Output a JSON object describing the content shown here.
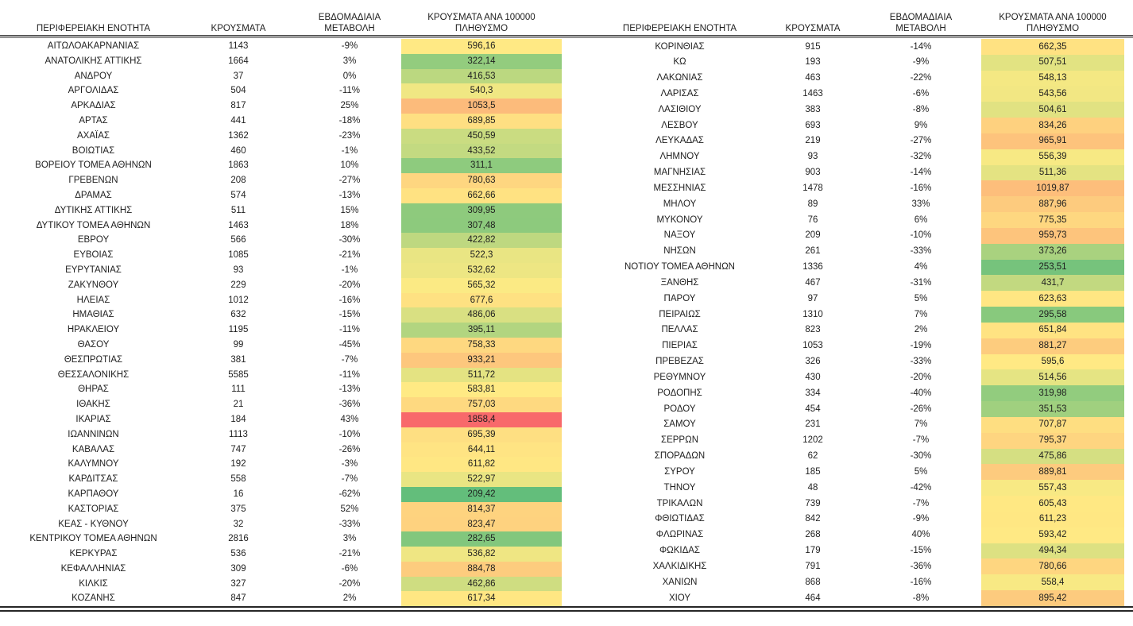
{
  "header": {
    "region": "ΠΕΡΙΦΕΡΕΙΑΚΗ ΕΝΟΤΗΤΑ",
    "cases": "ΚΡΟΥΣΜΑΤΑ",
    "change_line1": "ΕΒΔΟΜΑΔΙΑΙΑ",
    "change_line2": "ΜΕΤΑΒΟΛΗ",
    "per100k_line1": "ΚΡΟΥΣΜΑΤΑ ΑΝΑ 100000",
    "per100k_line2": "ΠΛΗΘΥΣΜΟ"
  },
  "color_scale": {
    "type": "3-color-scale",
    "min_value": 209.42,
    "mid_value": 574.57,
    "max_value": 1858.4,
    "min_color": "#63BE7B",
    "mid_color": "#FFEB84",
    "max_color": "#F8696B"
  },
  "left_table": {
    "rows": [
      [
        "ΑΙΤΩΛΟΑΚΑΡΝΑΝΙΑΣ",
        "1143",
        "-9%",
        "596,16"
      ],
      [
        "ΑΝΑΤΟΛΙΚΗΣ ΑΤΤΙΚΗΣ",
        "1664",
        "3%",
        "322,14"
      ],
      [
        "ΑΝΔΡΟΥ",
        "37",
        "0%",
        "416,53"
      ],
      [
        "ΑΡΓΟΛΙΔΑΣ",
        "504",
        "-11%",
        "540,3"
      ],
      [
        "ΑΡΚΑΔΙΑΣ",
        "817",
        "25%",
        "1053,5"
      ],
      [
        "ΑΡΤΑΣ",
        "441",
        "-18%",
        "689,85"
      ],
      [
        "ΑΧΑΪΑΣ",
        "1362",
        "-23%",
        "450,59"
      ],
      [
        "ΒΟΙΩΤΙΑΣ",
        "460",
        "-1%",
        "433,52"
      ],
      [
        "ΒΟΡΕΙΟΥ ΤΟΜΕΑ ΑΘΗΝΩΝ",
        "1863",
        "10%",
        "311,1"
      ],
      [
        "ΓΡΕΒΕΝΩΝ",
        "208",
        "-27%",
        "780,63"
      ],
      [
        "ΔΡΑΜΑΣ",
        "574",
        "-13%",
        "662,66"
      ],
      [
        "ΔΥΤΙΚΗΣ ΑΤΤΙΚΗΣ",
        "511",
        "15%",
        "309,95"
      ],
      [
        "ΔΥΤΙΚΟΥ ΤΟΜΕΑ ΑΘΗΝΩΝ",
        "1463",
        "18%",
        "307,48"
      ],
      [
        "ΕΒΡΟΥ",
        "566",
        "-30%",
        "422,82"
      ],
      [
        "ΕΥΒΟΙΑΣ",
        "1085",
        "-21%",
        "522,3"
      ],
      [
        "ΕΥΡΥΤΑΝΙΑΣ",
        "93",
        "-1%",
        "532,62"
      ],
      [
        "ΖΑΚΥΝΘΟΥ",
        "229",
        "-20%",
        "565,32"
      ],
      [
        "ΗΛΕΙΑΣ",
        "1012",
        "-16%",
        "677,6"
      ],
      [
        "ΗΜΑΘΙΑΣ",
        "632",
        "-15%",
        "486,06"
      ],
      [
        "ΗΡΑΚΛΕΙΟΥ",
        "1195",
        "-11%",
        "395,11"
      ],
      [
        "ΘΑΣΟΥ",
        "99",
        "-45%",
        "758,33"
      ],
      [
        "ΘΕΣΠΡΩΤΙΑΣ",
        "381",
        "-7%",
        "933,21"
      ],
      [
        "ΘΕΣΣΑΛΟΝΙΚΗΣ",
        "5585",
        "-11%",
        "511,72"
      ],
      [
        "ΘΗΡΑΣ",
        "111",
        "-13%",
        "583,81"
      ],
      [
        "ΙΘΑΚΗΣ",
        "21",
        "-36%",
        "757,03"
      ],
      [
        "ΙΚΑΡΙΑΣ",
        "184",
        "43%",
        "1858,4"
      ],
      [
        "ΙΩΑΝΝΙΝΩΝ",
        "1113",
        "-10%",
        "695,39"
      ],
      [
        "ΚΑΒΑΛΑΣ",
        "747",
        "-26%",
        "644,11"
      ],
      [
        "ΚΑΛΥΜΝΟΥ",
        "192",
        "-3%",
        "611,82"
      ],
      [
        "ΚΑΡΔΙΤΣΑΣ",
        "558",
        "-7%",
        "522,97"
      ],
      [
        "ΚΑΡΠΑΘΟΥ",
        "16",
        "-62%",
        "209,42"
      ],
      [
        "ΚΑΣΤΟΡΙΑΣ",
        "375",
        "52%",
        "814,37"
      ],
      [
        "ΚΕΑΣ - ΚΥΘΝΟΥ",
        "32",
        "-33%",
        "823,47"
      ],
      [
        "ΚΕΝΤΡΙΚΟΥ ΤΟΜΕΑ ΑΘΗΝΩΝ",
        "2816",
        "3%",
        "282,65"
      ],
      [
        "ΚΕΡΚΥΡΑΣ",
        "536",
        "-21%",
        "536,82"
      ],
      [
        "ΚΕΦΑΛΛΗΝΙΑΣ",
        "309",
        "-6%",
        "884,78"
      ],
      [
        "ΚΙΛΚΙΣ",
        "327",
        "-20%",
        "462,86"
      ],
      [
        "ΚΟΖΑΝΗΣ",
        "847",
        "2%",
        "617,34"
      ]
    ]
  },
  "right_table": {
    "rows": [
      [
        "ΚΟΡΙΝΘΙΑΣ",
        "915",
        "-14%",
        "662,35"
      ],
      [
        "ΚΩ",
        "193",
        "-9%",
        "507,51"
      ],
      [
        "ΛΑΚΩΝΙΑΣ",
        "463",
        "-22%",
        "548,13"
      ],
      [
        "ΛΑΡΙΣΑΣ",
        "1463",
        "-6%",
        "543,56"
      ],
      [
        "ΛΑΣΙΘΙΟΥ",
        "383",
        "-8%",
        "504,61"
      ],
      [
        "ΛΕΣΒΟΥ",
        "693",
        "9%",
        "834,26"
      ],
      [
        "ΛΕΥΚΑΔΑΣ",
        "219",
        "-27%",
        "965,91"
      ],
      [
        "ΛΗΜΝΟΥ",
        "93",
        "-32%",
        "556,39"
      ],
      [
        "ΜΑΓΝΗΣΙΑΣ",
        "903",
        "-14%",
        "511,36"
      ],
      [
        "ΜΕΣΣΗΝΙΑΣ",
        "1478",
        "-16%",
        "1019,87"
      ],
      [
        "ΜΗΛΟΥ",
        "89",
        "33%",
        "887,96"
      ],
      [
        "ΜΥΚΟΝΟΥ",
        "76",
        "6%",
        "775,35"
      ],
      [
        "ΝΑΞΟΥ",
        "209",
        "-10%",
        "959,73"
      ],
      [
        "ΝΗΣΩΝ",
        "261",
        "-33%",
        "373,26"
      ],
      [
        "ΝΟΤΙΟΥ ΤΟΜΕΑ ΑΘΗΝΩΝ",
        "1336",
        "4%",
        "253,51"
      ],
      [
        "ΞΑΝΘΗΣ",
        "467",
        "-31%",
        "431,7"
      ],
      [
        "ΠΑΡΟΥ",
        "97",
        "5%",
        "623,63"
      ],
      [
        "ΠΕΙΡΑΙΩΣ",
        "1310",
        "7%",
        "295,58"
      ],
      [
        "ΠΕΛΛΑΣ",
        "823",
        "2%",
        "651,84"
      ],
      [
        "ΠΙΕΡΙΑΣ",
        "1053",
        "-19%",
        "881,27"
      ],
      [
        "ΠΡΕΒΕΖΑΣ",
        "326",
        "-33%",
        "595,6"
      ],
      [
        "ΡΕΘΥΜΝΟΥ",
        "430",
        "-20%",
        "514,56"
      ],
      [
        "ΡΟΔΟΠΗΣ",
        "334",
        "-40%",
        "319,98"
      ],
      [
        "ΡΟΔΟΥ",
        "454",
        "-26%",
        "351,53"
      ],
      [
        "ΣΑΜΟΥ",
        "231",
        "7%",
        "707,87"
      ],
      [
        "ΣΕΡΡΩΝ",
        "1202",
        "-7%",
        "795,37"
      ],
      [
        "ΣΠΟΡΑΔΩΝ",
        "62",
        "-30%",
        "475,86"
      ],
      [
        "ΣΥΡΟΥ",
        "185",
        "5%",
        "889,81"
      ],
      [
        "ΤΗΝΟΥ",
        "48",
        "-42%",
        "557,43"
      ],
      [
        "ΤΡΙΚΑΛΩΝ",
        "739",
        "-7%",
        "605,43"
      ],
      [
        "ΦΘΙΩΤΙΔΑΣ",
        "842",
        "-9%",
        "611,23"
      ],
      [
        "ΦΛΩΡΙΝΑΣ",
        "268",
        "40%",
        "593,42"
      ],
      [
        "ΦΩΚΙΔΑΣ",
        "179",
        "-15%",
        "494,34"
      ],
      [
        "ΧΑΛΚΙΔΙΚΗΣ",
        "791",
        "-36%",
        "780,66"
      ],
      [
        "ΧΑΝΙΩΝ",
        "868",
        "-16%",
        "558,4"
      ],
      [
        "ΧΙΟΥ",
        "464",
        "-8%",
        "895,42"
      ]
    ]
  }
}
